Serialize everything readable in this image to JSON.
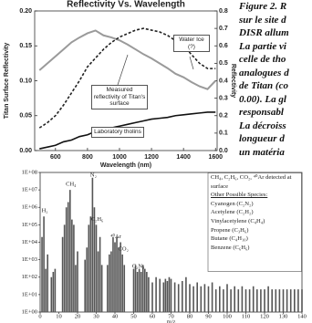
{
  "chart_data": [
    {
      "type": "line",
      "title": "Reflectivity Vs. Wavelength",
      "xlabel": "Wavelength (nm)",
      "ylabel": "Titan Surface Reflectivity",
      "y2label": "Reflectivity",
      "x": [
        500,
        550,
        600,
        650,
        700,
        750,
        800,
        850,
        900,
        950,
        1000,
        1050,
        1100,
        1150,
        1200,
        1250,
        1300,
        1350,
        1400,
        1450,
        1500,
        1550,
        1600
      ],
      "series": [
        {
          "name": "Measured reflectivity of Titan's surface",
          "color": "#9a9a9a",
          "linestyle": "solid",
          "axis": "y",
          "values": [
            0.115,
            0.125,
            0.135,
            0.145,
            0.155,
            0.162,
            0.168,
            0.172,
            0.165,
            0.162,
            0.158,
            0.152,
            0.145,
            0.138,
            0.132,
            0.125,
            0.118,
            0.11,
            0.105,
            0.098,
            0.092,
            0.088,
            0.1
          ]
        },
        {
          "name": "Water Ice (?)",
          "color": "#222222",
          "linestyle": "dashed",
          "axis": "y2",
          "values": [
            0.13,
            0.16,
            0.2,
            0.26,
            0.33,
            0.4,
            0.48,
            0.53,
            0.58,
            0.62,
            0.65,
            0.67,
            0.69,
            0.7,
            0.69,
            0.68,
            0.66,
            0.63,
            0.6,
            0.55,
            0.5,
            0.47,
            0.47
          ]
        },
        {
          "name": "Laboratory tholins",
          "color": "#111111",
          "linestyle": "solid",
          "axis": "y2",
          "values": [
            0.01,
            0.02,
            0.03,
            0.05,
            0.06,
            0.08,
            0.09,
            0.11,
            0.12,
            0.13,
            0.14,
            0.15,
            0.16,
            0.17,
            0.18,
            0.185,
            0.19,
            0.2,
            0.205,
            0.21,
            0.215,
            0.22,
            0.22
          ]
        }
      ],
      "xlim": [
        470,
        1610
      ],
      "xticks": [
        600,
        800,
        1000,
        1200,
        1400,
        1600
      ],
      "ylim": [
        0,
        0.2
      ],
      "yticks": [
        {
          "value": 0,
          "label": "0.00"
        },
        {
          "value": 0.05,
          "label": "0.05"
        },
        {
          "value": 0.1,
          "label": "0.10"
        },
        {
          "value": 0.15,
          "label": "0.15"
        },
        {
          "value": 0.2,
          "label": "0.20"
        }
      ],
      "y2lim": [
        0,
        0.8
      ],
      "y2ticks": [
        {
          "value": 0,
          "label": "0.0"
        },
        0.1,
        0.2,
        0.3,
        0.4,
        0.5,
        0.6,
        0.7,
        0.8
      ]
    },
    {
      "type": "bar",
      "xlabel": "m/z",
      "color": "#555555",
      "log_scale": true,
      "x": [
        1,
        2,
        3,
        4,
        6,
        7,
        8,
        12,
        13,
        14,
        15,
        16,
        17,
        18,
        19,
        20,
        24,
        25,
        26,
        27,
        28,
        29,
        30,
        31,
        32,
        33,
        36,
        37,
        38,
        39,
        40,
        41,
        42,
        43,
        44,
        45,
        50,
        51,
        52,
        53,
        54,
        55,
        56,
        57,
        58,
        60,
        62,
        64,
        66,
        67,
        68,
        69,
        70,
        72,
        74,
        76,
        78,
        80,
        82,
        84,
        86,
        88,
        90,
        92,
        94,
        96,
        98,
        100,
        102,
        104,
        106,
        108,
        110,
        112,
        114,
        116,
        118,
        120,
        122,
        124,
        126,
        128,
        130,
        132,
        134,
        136,
        138,
        140
      ],
      "values": [
        20000,
        300000,
        300,
        2000,
        100,
        200,
        300,
        20000,
        100000,
        1000000,
        2000000,
        10000000,
        200000,
        100000,
        500,
        3000,
        1000,
        5000,
        100000,
        300000,
        50000000,
        1000000,
        100000,
        3000,
        20000,
        500,
        500,
        2000,
        3000,
        20000,
        10000,
        20000,
        5000,
        10000,
        2000,
        500,
        300,
        500,
        200,
        300,
        200,
        500,
        300,
        200,
        100,
        50,
        100,
        80,
        50,
        80,
        60,
        100,
        80,
        50,
        40,
        60,
        100,
        40,
        30,
        50,
        30,
        40,
        30,
        50,
        20,
        30,
        20,
        40,
        20,
        30,
        20,
        30,
        20,
        20,
        30,
        20,
        20,
        20,
        30,
        20,
        20,
        20,
        20,
        20,
        20,
        20,
        20,
        20
      ],
      "xlim": [
        0,
        140
      ],
      "xticks": [
        0,
        10,
        20,
        30,
        40,
        50,
        60,
        70,
        80,
        90,
        100,
        110,
        120,
        130,
        140
      ],
      "ylim": [
        1,
        100000000
      ],
      "yticks": [
        {
          "value": 1,
          "label": "1E+00"
        },
        {
          "value": 10,
          "label": "1E+01"
        },
        {
          "value": 100,
          "label": "1E+02"
        },
        {
          "value": 1000,
          "label": "1E+03"
        },
        {
          "value": 10000,
          "label": "1E+04"
        },
        {
          "value": 100000,
          "label": "1E+05"
        },
        {
          "value": 1000000,
          "label": "1E+06"
        },
        {
          "value": 10000000,
          "label": "1E+07"
        },
        {
          "value": 100000000,
          "label": "1E+08"
        }
      ],
      "annotations": [
        {
          "text": "H₂",
          "x": 2
        },
        {
          "text": "CH₄",
          "x": 16
        },
        {
          "text": "N₂",
          "x": 28
        },
        {
          "text": "C₂H₆",
          "x": 30
        },
        {
          "text": "⁴⁰Ar",
          "x": 40
        },
        {
          "text": "CO₂",
          "x": 44
        },
        {
          "text": "C₂N₂",
          "x": 52
        }
      ],
      "note_lines": [
        "CH₄, C₂H₆, CO₂, ⁴⁰Ar detected at surface",
        "Other Possible Species:",
        "Cyanogen (C₂N₂)",
        "Acetylene (C₂H₂)",
        "Vinylacetylene (C₄H₄)",
        "Propene (C₃H₆)",
        "Butane (C₄H₁₀)",
        "Benzene (C₆H₆)"
      ]
    }
  ],
  "document": {
    "caption_lines": [
      "Figure 2. R",
      "sur le site d",
      "DISR allum",
      "La partie vi",
      "celle de tho",
      "analogues d",
      "de Titan (co",
      "0.00). La gl",
      "responsabl",
      "La décroiss",
      "longueur d",
      "un matéria"
    ]
  }
}
